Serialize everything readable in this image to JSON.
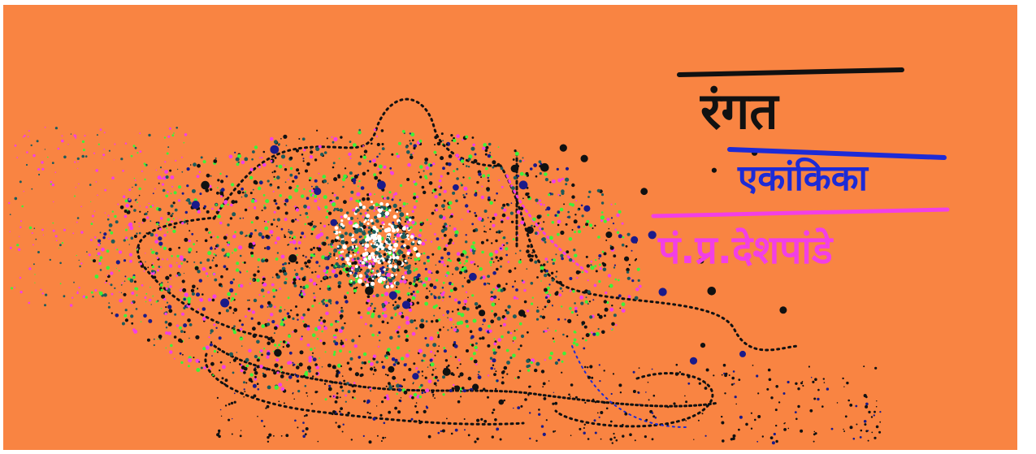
{
  "colors": {
    "background": "#f98442",
    "ink_black": "#111111",
    "ink_blue": "#1d2bd6",
    "ink_magenta": "#f23fe6",
    "ink_green": "#3df23a",
    "ink_teal": "#1d5a5a",
    "ink_navy": "#1a1a8a",
    "ink_white": "#ffffff"
  },
  "texts": {
    "title": "रंगत",
    "subtitle": "एकांकिका",
    "author": "पं.प्र.देशपांडे"
  }
}
